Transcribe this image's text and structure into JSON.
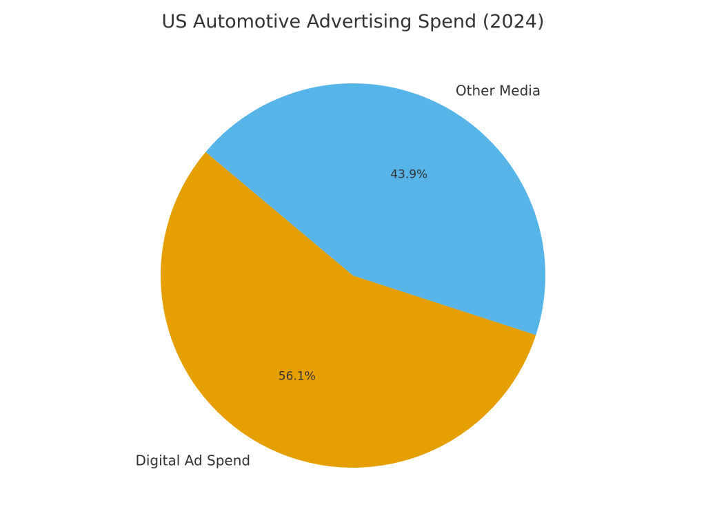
{
  "chart_data": {
    "type": "pie",
    "title": "US Automotive Advertising Spend (2024)",
    "slices": [
      {
        "label": "Digital Ad Spend",
        "value": 56.1,
        "pct_label": "56.1%",
        "color": "#E69F00"
      },
      {
        "label": "Other Media",
        "value": 43.9,
        "pct_label": "43.9%",
        "color": "#56B4E9"
      }
    ],
    "legend": "none"
  }
}
